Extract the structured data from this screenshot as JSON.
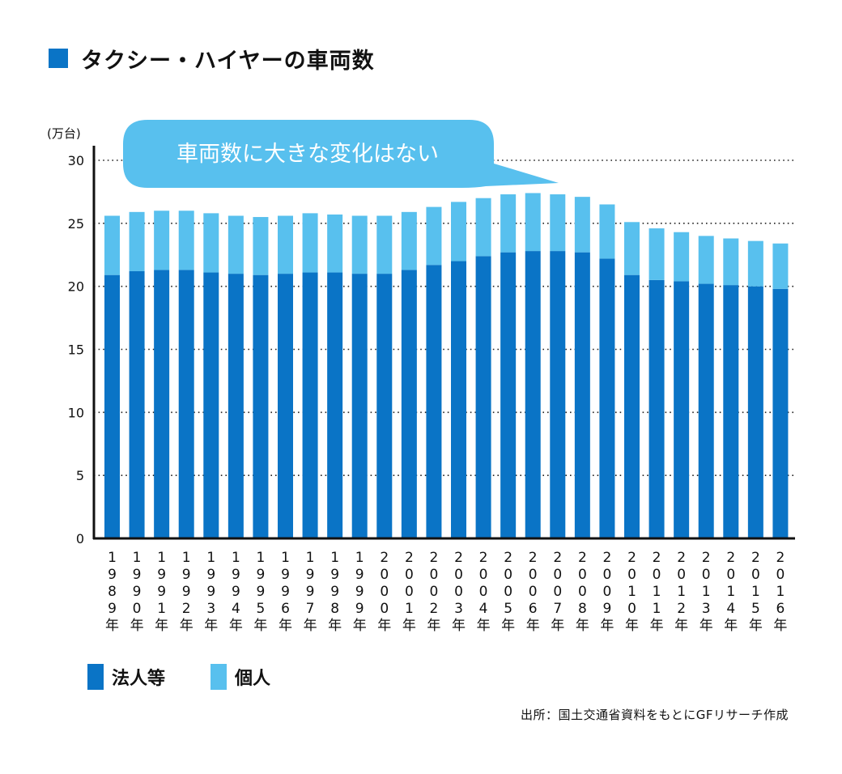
{
  "title": "タクシー・ハイヤーの車両数",
  "unit_label": "(万台)",
  "callout": "車両数に大きな変化はない",
  "source": "出所：国土交通省資料をもとにGFリサーチ作成",
  "colors": {
    "corporate": "#0a74c6",
    "individual": "#58c0ee",
    "callout_bg": "#58c0ee",
    "title_square": "#0a74c6"
  },
  "legend": [
    {
      "label": "法人等",
      "color": "#0a74c6"
    },
    {
      "label": "個人",
      "color": "#58c0ee"
    }
  ],
  "chart_data": {
    "type": "bar",
    "stacked": true,
    "title": "タクシー・ハイヤーの車両数",
    "ylabel": "(万台)",
    "ylim": [
      0,
      30
    ],
    "yticks": [
      0,
      5,
      10,
      15,
      20,
      25,
      30
    ],
    "grid": "horizontal-dotted",
    "legend_position": "bottom-left",
    "categories": [
      "1989年",
      "1990年",
      "1991年",
      "1992年",
      "1993年",
      "1994年",
      "1995年",
      "1996年",
      "1997年",
      "1998年",
      "1999年",
      "2000年",
      "2001年",
      "2002年",
      "2003年",
      "2004年",
      "2005年",
      "2006年",
      "2007年",
      "2008年",
      "2009年",
      "2010年",
      "2011年",
      "2012年",
      "2013年",
      "2014年",
      "2015年",
      "2016年"
    ],
    "series": [
      {
        "name": "法人等",
        "values": [
          20.9,
          21.2,
          21.3,
          21.3,
          21.1,
          21.0,
          20.9,
          21.0,
          21.1,
          21.1,
          21.0,
          21.0,
          21.3,
          21.7,
          22.0,
          22.4,
          22.7,
          22.8,
          22.8,
          22.7,
          22.2,
          20.9,
          20.5,
          20.4,
          20.2,
          20.1,
          20.0,
          19.8
        ]
      },
      {
        "name": "個人",
        "values": [
          4.7,
          4.7,
          4.7,
          4.7,
          4.7,
          4.6,
          4.6,
          4.6,
          4.7,
          4.6,
          4.6,
          4.6,
          4.6,
          4.6,
          4.7,
          4.6,
          4.6,
          4.6,
          4.5,
          4.4,
          4.3,
          4.2,
          4.1,
          3.9,
          3.8,
          3.7,
          3.6,
          3.6
        ]
      }
    ]
  }
}
